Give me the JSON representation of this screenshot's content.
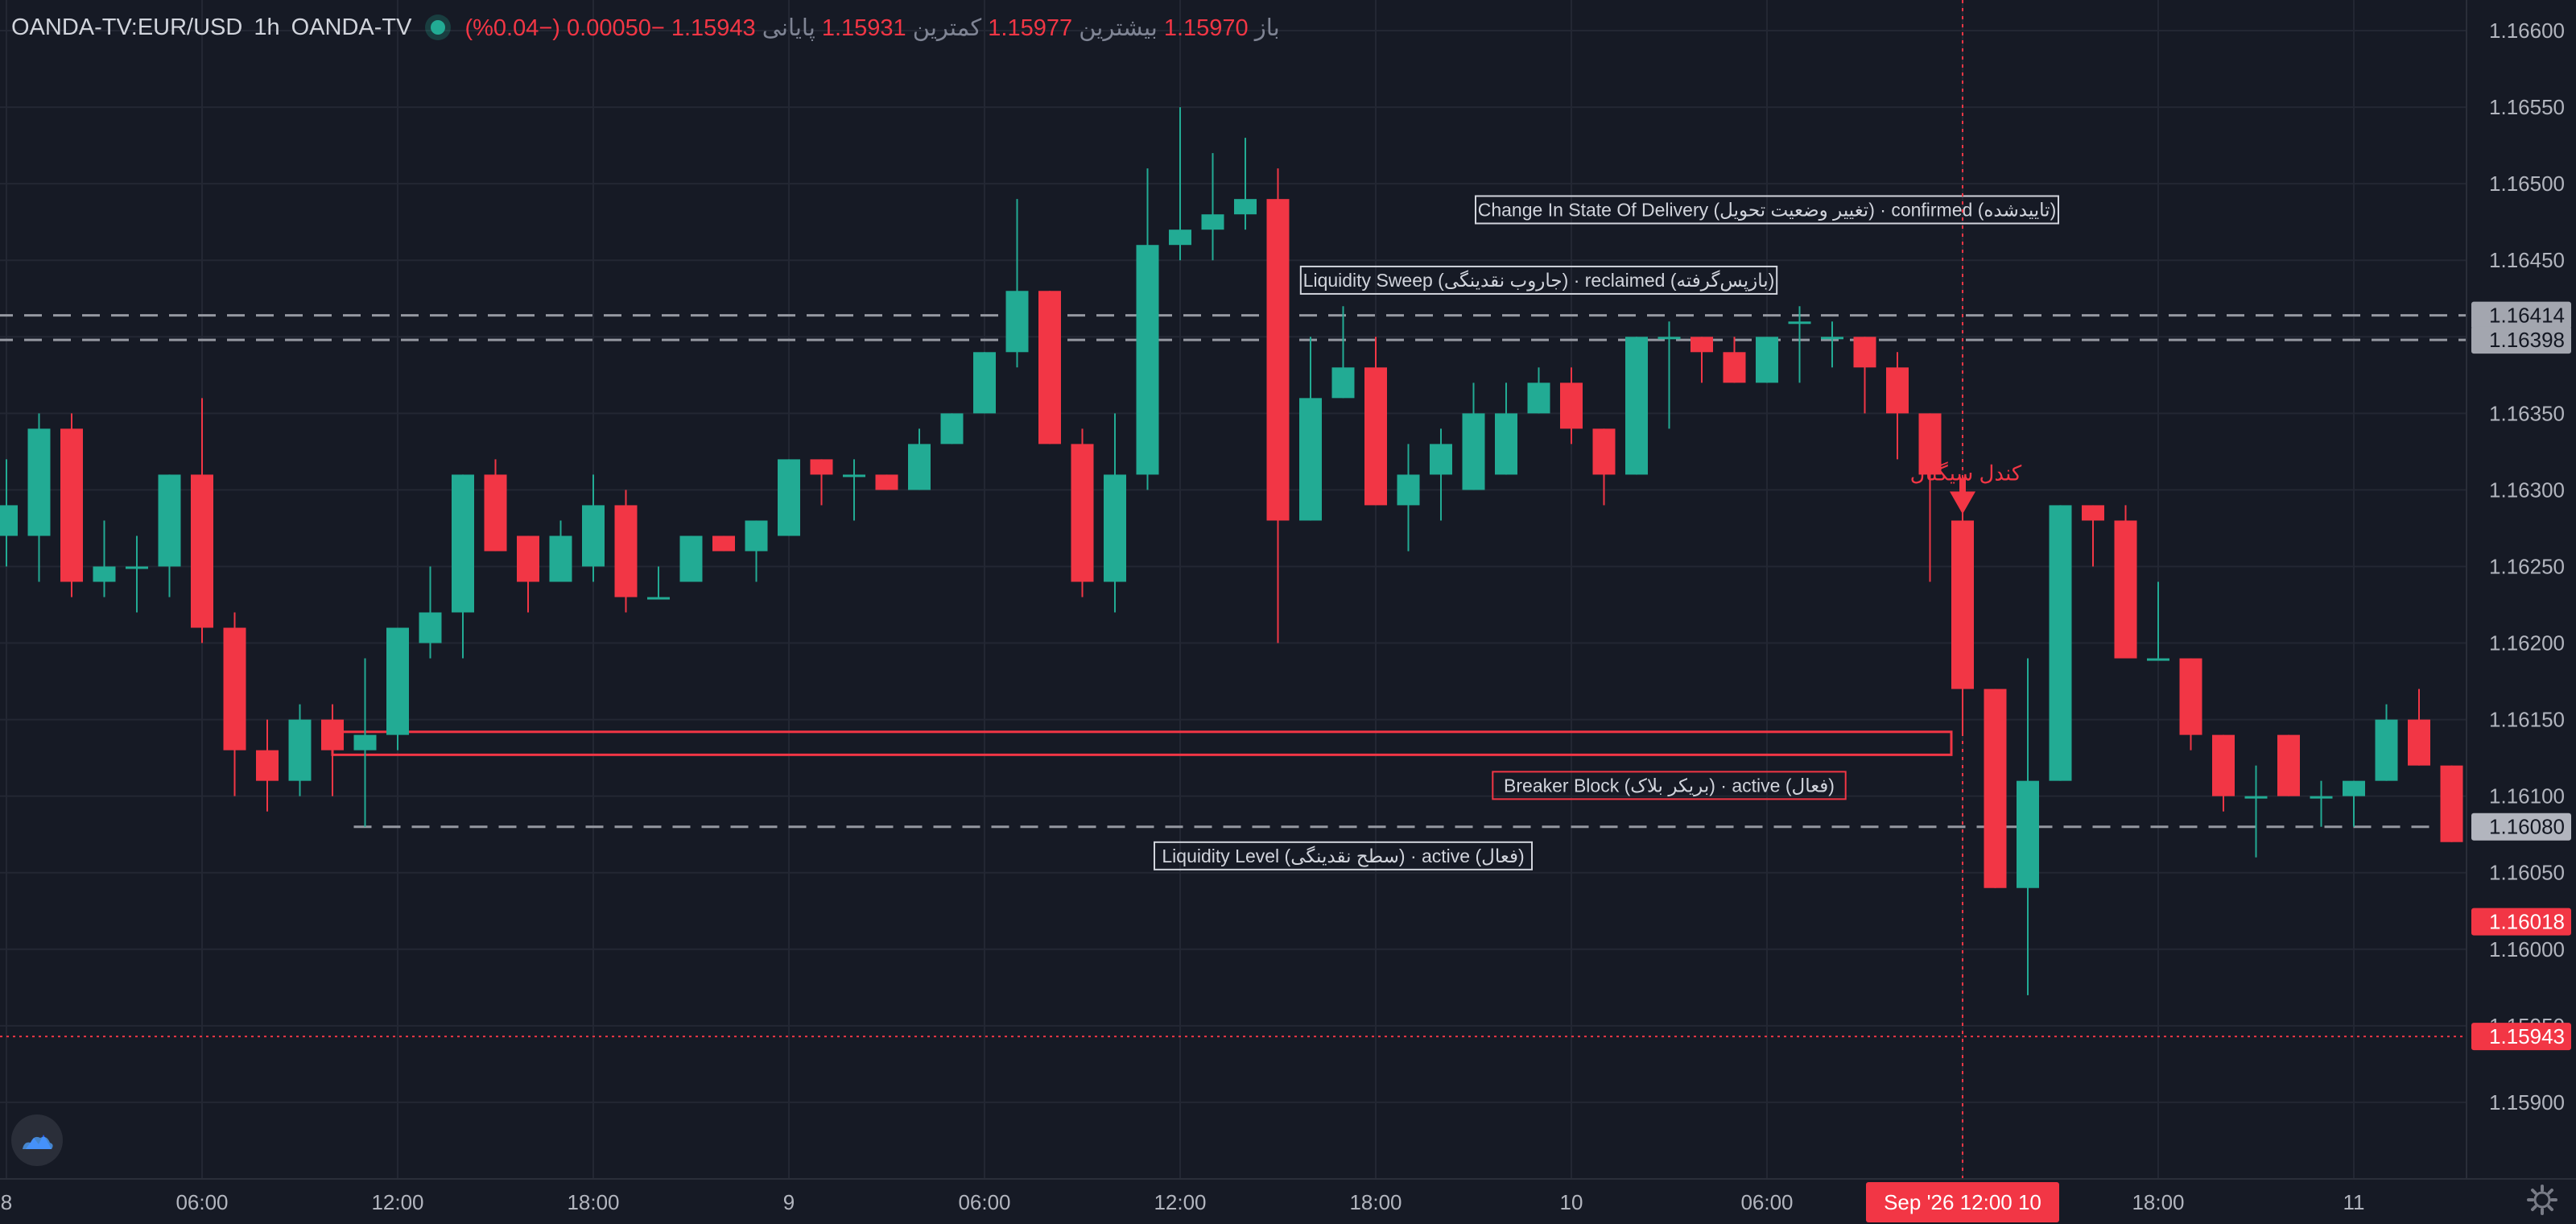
{
  "header": {
    "symbol": "OANDA-TV:EUR/USD",
    "interval": "1h",
    "source": "OANDA-TV",
    "open_label": "باز",
    "open": "1.15970",
    "high_label": "بیشترین",
    "high": "1.15977",
    "low_label": "کمترین",
    "low": "1.15931",
    "close_label": "پایانی",
    "close": "1.15943",
    "change": "−0.00050 (−0.04%)"
  },
  "colors": {
    "background": "#161a25",
    "grid": "#232733",
    "text": "#d1d4dc",
    "axis_text": "#b2b5be",
    "up": "#22ab94",
    "down": "#f23645",
    "zone": "#f23645",
    "level": "#9598a1",
    "annotation_border": "#d1d4dc"
  },
  "icons": {
    "logo": "tradingview-cloud-icon",
    "settings": "gear-icon",
    "signal": "arrow-down-icon"
  },
  "chart_data": {
    "type": "candlestick",
    "ylim": [
      1.1585,
      1.1662
    ],
    "y_ticks": [
      1.159,
      1.1595,
      1.16,
      1.1605,
      1.161,
      1.1615,
      1.162,
      1.1625,
      1.163,
      1.1635,
      1.164,
      1.1645,
      1.165,
      1.1655,
      1.166
    ],
    "y_tick_labels": [
      "1.15900",
      "1.15950",
      "1.16000",
      "1.16050",
      "1.16100",
      "1.16150",
      "1.16200",
      "1.16250",
      "1.16300",
      "1.16350",
      "1.16400",
      "1.16450",
      "1.16500",
      "1.16550",
      "1.16600"
    ],
    "x_ticks": [
      {
        "bar": 0,
        "label": "8"
      },
      {
        "bar": 6,
        "label": "06:00"
      },
      {
        "bar": 12,
        "label": "12:00"
      },
      {
        "bar": 18,
        "label": "18:00"
      },
      {
        "bar": 24,
        "label": "9"
      },
      {
        "bar": 30,
        "label": "06:00"
      },
      {
        "bar": 36,
        "label": "12:00"
      },
      {
        "bar": 42,
        "label": "18:00"
      },
      {
        "bar": 48,
        "label": "10"
      },
      {
        "bar": 54,
        "label": "06:00"
      },
      {
        "bar": 60,
        "label": "12:00"
      },
      {
        "bar": 66,
        "label": "18:00"
      },
      {
        "bar": 72,
        "label": "11"
      }
    ],
    "candles": [
      {
        "o": 1.1627,
        "h": 1.1632,
        "l": 1.1625,
        "c": 1.1629
      },
      {
        "o": 1.1627,
        "h": 1.1635,
        "l": 1.1624,
        "c": 1.1634
      },
      {
        "o": 1.1634,
        "h": 1.1635,
        "l": 1.1623,
        "c": 1.1624
      },
      {
        "o": 1.1624,
        "h": 1.1628,
        "l": 1.1623,
        "c": 1.1625
      },
      {
        "o": 1.1625,
        "h": 1.1627,
        "l": 1.1622,
        "c": 1.1625
      },
      {
        "o": 1.1625,
        "h": 1.1631,
        "l": 1.1623,
        "c": 1.1631
      },
      {
        "o": 1.1631,
        "h": 1.1636,
        "l": 1.162,
        "c": 1.1621
      },
      {
        "o": 1.1621,
        "h": 1.1622,
        "l": 1.161,
        "c": 1.1613
      },
      {
        "o": 1.1613,
        "h": 1.1615,
        "l": 1.1609,
        "c": 1.1611
      },
      {
        "o": 1.1611,
        "h": 1.1616,
        "l": 1.161,
        "c": 1.1615
      },
      {
        "o": 1.1615,
        "h": 1.1616,
        "l": 1.161,
        "c": 1.1613
      },
      {
        "o": 1.1613,
        "h": 1.1619,
        "l": 1.1608,
        "c": 1.1614
      },
      {
        "o": 1.1614,
        "h": 1.1621,
        "l": 1.1613,
        "c": 1.1621
      },
      {
        "o": 1.162,
        "h": 1.1625,
        "l": 1.1619,
        "c": 1.1622
      },
      {
        "o": 1.1622,
        "h": 1.1631,
        "l": 1.1619,
        "c": 1.1631
      },
      {
        "o": 1.1631,
        "h": 1.1632,
        "l": 1.1626,
        "c": 1.1626
      },
      {
        "o": 1.1627,
        "h": 1.1627,
        "l": 1.1622,
        "c": 1.1624
      },
      {
        "o": 1.1624,
        "h": 1.1628,
        "l": 1.1624,
        "c": 1.1627
      },
      {
        "o": 1.1625,
        "h": 1.1631,
        "l": 1.1624,
        "c": 1.1629
      },
      {
        "o": 1.1629,
        "h": 1.163,
        "l": 1.1622,
        "c": 1.1623
      },
      {
        "o": 1.1623,
        "h": 1.1625,
        "l": 1.1623,
        "c": 1.1623
      },
      {
        "o": 1.1624,
        "h": 1.1627,
        "l": 1.1624,
        "c": 1.1627
      },
      {
        "o": 1.1627,
        "h": 1.1627,
        "l": 1.1626,
        "c": 1.1626
      },
      {
        "o": 1.1626,
        "h": 1.1628,
        "l": 1.1624,
        "c": 1.1628
      },
      {
        "o": 1.1627,
        "h": 1.1632,
        "l": 1.1627,
        "c": 1.1632
      },
      {
        "o": 1.1632,
        "h": 1.1632,
        "l": 1.1629,
        "c": 1.1631
      },
      {
        "o": 1.1631,
        "h": 1.1632,
        "l": 1.1628,
        "c": 1.1631
      },
      {
        "o": 1.1631,
        "h": 1.1631,
        "l": 1.163,
        "c": 1.163
      },
      {
        "o": 1.163,
        "h": 1.1634,
        "l": 1.163,
        "c": 1.1633
      },
      {
        "o": 1.1633,
        "h": 1.1635,
        "l": 1.1633,
        "c": 1.1635
      },
      {
        "o": 1.1635,
        "h": 1.1639,
        "l": 1.1635,
        "c": 1.1639
      },
      {
        "o": 1.1639,
        "h": 1.1649,
        "l": 1.1638,
        "c": 1.1643
      },
      {
        "o": 1.1643,
        "h": 1.1643,
        "l": 1.1633,
        "c": 1.1633
      },
      {
        "o": 1.1633,
        "h": 1.1634,
        "l": 1.1623,
        "c": 1.1624
      },
      {
        "o": 1.1624,
        "h": 1.1635,
        "l": 1.1622,
        "c": 1.1631
      },
      {
        "o": 1.1631,
        "h": 1.1651,
        "l": 1.163,
        "c": 1.1646
      },
      {
        "o": 1.1646,
        "h": 1.1655,
        "l": 1.1645,
        "c": 1.1647
      },
      {
        "o": 1.1647,
        "h": 1.1652,
        "l": 1.1645,
        "c": 1.1648
      },
      {
        "o": 1.1648,
        "h": 1.1653,
        "l": 1.1647,
        "c": 1.1649
      },
      {
        "o": 1.1649,
        "h": 1.1651,
        "l": 1.162,
        "c": 1.1628
      },
      {
        "o": 1.1628,
        "h": 1.164,
        "l": 1.1628,
        "c": 1.1636
      },
      {
        "o": 1.1636,
        "h": 1.1642,
        "l": 1.1636,
        "c": 1.1638
      },
      {
        "o": 1.1638,
        "h": 1.164,
        "l": 1.1629,
        "c": 1.1629
      },
      {
        "o": 1.1629,
        "h": 1.1633,
        "l": 1.1626,
        "c": 1.1631
      },
      {
        "o": 1.1631,
        "h": 1.1634,
        "l": 1.1628,
        "c": 1.1633
      },
      {
        "o": 1.163,
        "h": 1.1637,
        "l": 1.163,
        "c": 1.1635
      },
      {
        "o": 1.1631,
        "h": 1.1637,
        "l": 1.1631,
        "c": 1.1635
      },
      {
        "o": 1.1635,
        "h": 1.1638,
        "l": 1.1635,
        "c": 1.1637
      },
      {
        "o": 1.1637,
        "h": 1.1638,
        "l": 1.1633,
        "c": 1.1634
      },
      {
        "o": 1.1634,
        "h": 1.1634,
        "l": 1.1629,
        "c": 1.1631
      },
      {
        "o": 1.1631,
        "h": 1.164,
        "l": 1.1631,
        "c": 1.164
      },
      {
        "o": 1.164,
        "h": 1.1641,
        "l": 1.1634,
        "c": 1.164
      },
      {
        "o": 1.164,
        "h": 1.164,
        "l": 1.1637,
        "c": 1.1639
      },
      {
        "o": 1.1639,
        "h": 1.164,
        "l": 1.1637,
        "c": 1.1637
      },
      {
        "o": 1.1637,
        "h": 1.164,
        "l": 1.1637,
        "c": 1.164
      },
      {
        "o": 1.1641,
        "h": 1.1642,
        "l": 1.1637,
        "c": 1.1641
      },
      {
        "o": 1.164,
        "h": 1.1641,
        "l": 1.1638,
        "c": 1.164
      },
      {
        "o": 1.164,
        "h": 1.164,
        "l": 1.1635,
        "c": 1.1638
      },
      {
        "o": 1.1638,
        "h": 1.1639,
        "l": 1.1632,
        "c": 1.1635
      },
      {
        "o": 1.1635,
        "h": 1.1635,
        "l": 1.1624,
        "c": 1.1631
      },
      {
        "o": 1.1628,
        "h": 1.1629,
        "l": 1.1614,
        "c": 1.1617
      },
      {
        "o": 1.1617,
        "h": 1.1617,
        "l": 1.1604,
        "c": 1.1604
      },
      {
        "o": 1.1604,
        "h": 1.1619,
        "l": 1.1597,
        "c": 1.1611
      },
      {
        "o": 1.1611,
        "h": 1.1629,
        "l": 1.1611,
        "c": 1.1629
      },
      {
        "o": 1.1629,
        "h": 1.1629,
        "l": 1.1625,
        "c": 1.1628
      },
      {
        "o": 1.1628,
        "h": 1.1629,
        "l": 1.1619,
        "c": 1.1619
      },
      {
        "o": 1.1619,
        "h": 1.1624,
        "l": 1.1619,
        "c": 1.1619
      },
      {
        "o": 1.1619,
        "h": 1.1619,
        "l": 1.1613,
        "c": 1.1614
      },
      {
        "o": 1.1614,
        "h": 1.1614,
        "l": 1.1609,
        "c": 1.161
      },
      {
        "o": 1.161,
        "h": 1.1612,
        "l": 1.1606,
        "c": 1.161
      },
      {
        "o": 1.1614,
        "h": 1.1614,
        "l": 1.161,
        "c": 1.161
      },
      {
        "o": 1.161,
        "h": 1.1611,
        "l": 1.1608,
        "c": 1.161
      },
      {
        "o": 1.161,
        "h": 1.1611,
        "l": 1.1608,
        "c": 1.1611
      },
      {
        "o": 1.1611,
        "h": 1.1616,
        "l": 1.1611,
        "c": 1.1615
      },
      {
        "o": 1.1615,
        "h": 1.1617,
        "l": 1.1612,
        "c": 1.1612
      },
      {
        "o": 1.1612,
        "h": 1.1612,
        "l": 1.1607,
        "c": 1.1607
      },
      {
        "o": 1.1607,
        "h": 1.1608,
        "l": 1.1599,
        "c": 1.1602
      }
    ],
    "levels": [
      {
        "name": "sweep-high",
        "price": 1.16414,
        "label": "1.16414",
        "from_bar": 0,
        "to_bar": 78
      },
      {
        "name": "sweep-low",
        "price": 1.16398,
        "label": "1.16398",
        "from_bar": 0,
        "to_bar": 78
      },
      {
        "name": "liquidity-level",
        "price": 1.1608,
        "label": "1.16080",
        "from_bar": 11,
        "to_bar": 78
      }
    ],
    "zones": [
      {
        "name": "breaker-block",
        "top": 1.16142,
        "bottom": 1.16127,
        "from_bar": 10,
        "to_bar": 60
      }
    ],
    "price_markers": [
      {
        "name": "current-price",
        "price": 1.16018,
        "label": "1.16018"
      },
      {
        "name": "last-close",
        "price": 1.15943,
        "label": "1.15943"
      }
    ],
    "annotations": [
      {
        "name": "change-in-state-of-delivery",
        "text": "Change In State Of Delivery (تغییر وضعیت تحویل) · confirmed (تاییدشده)",
        "bar": 54,
        "price": 1.16483
      },
      {
        "name": "liquidity-sweep",
        "text": "Liquidity Sweep (جاروب نقدینگی) · reclaimed (بازپس‌گرفته)",
        "bar": 47,
        "price": 1.16437
      },
      {
        "name": "breaker-block-label",
        "text": "Breaker Block (بریکر بلاک) · active (فعال)",
        "bar": 51,
        "price": 1.16107
      },
      {
        "name": "liquidity-level-label",
        "text": "Liquidity Level (سطح نقدینگی) · active (فعال)",
        "bar": 41,
        "price": 1.16061
      }
    ],
    "signal": {
      "text": "کندل سیگنال",
      "bar": 60,
      "price": 1.163
    },
    "crosshair": {
      "bar": 60,
      "price": 1.15943,
      "time_label": "Sep '26  12:00 10"
    }
  }
}
